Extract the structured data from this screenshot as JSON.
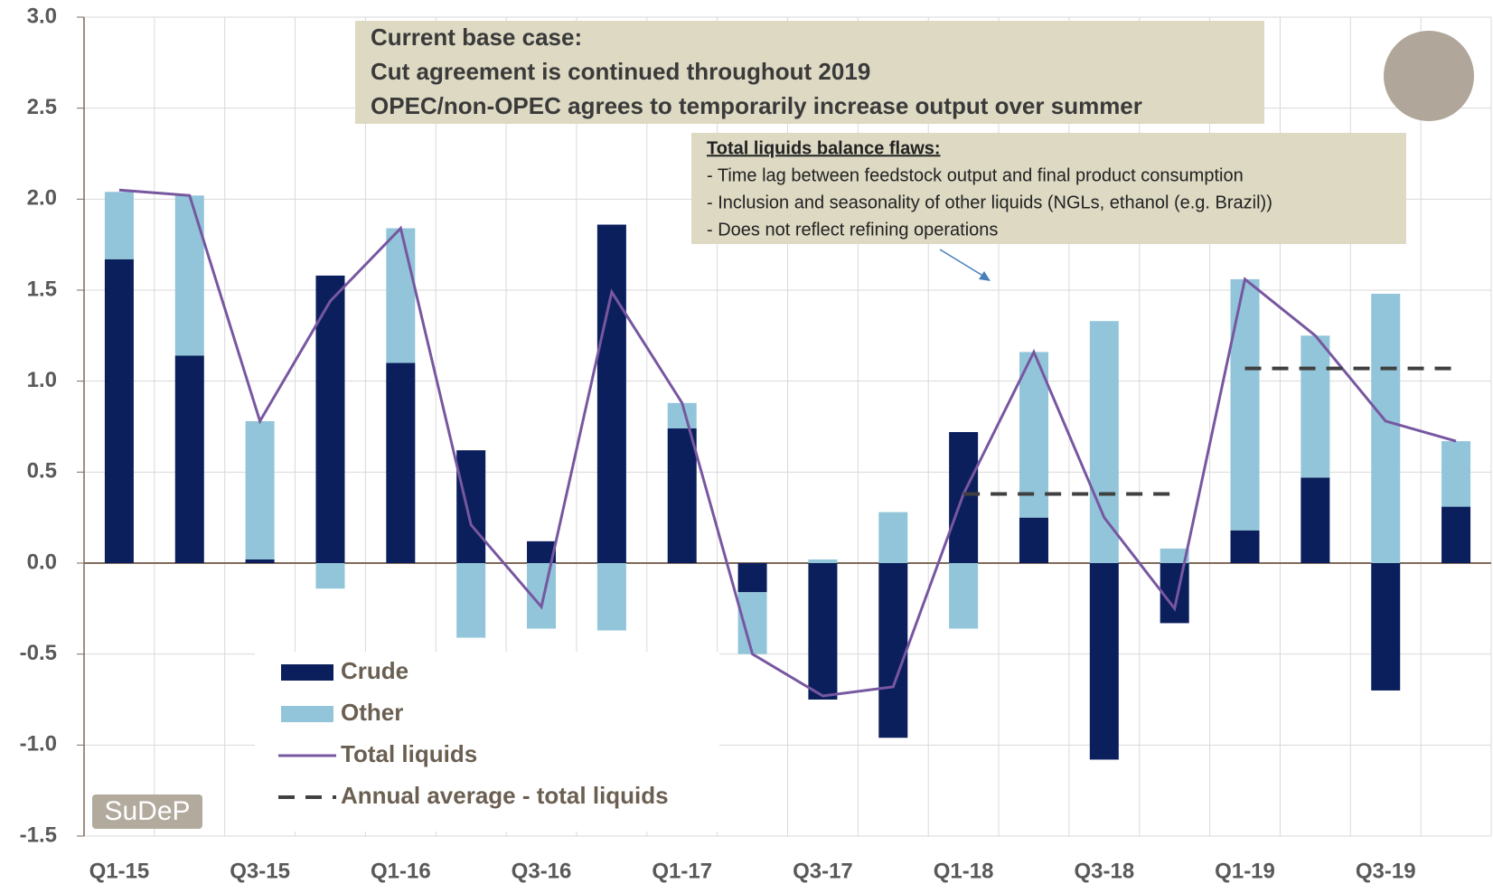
{
  "chart_data": {
    "type": "bar",
    "categories": [
      "Q1-15",
      null,
      "Q3-15",
      null,
      "Q1-16",
      null,
      "Q3-16",
      null,
      "Q1-17",
      null,
      "Q3-17",
      null,
      "Q1-18",
      null,
      "Q3-18",
      null,
      "Q1-19",
      null,
      "Q3-19",
      null
    ],
    "series": [
      {
        "name": "Crude",
        "type": "bar",
        "color": "#0b1f5c",
        "values": [
          1.67,
          1.14,
          0.02,
          1.58,
          1.1,
          0.62,
          0.12,
          1.86,
          0.74,
          -0.16,
          -0.75,
          -0.96,
          0.72,
          0.25,
          -1.08,
          -0.33,
          0.18,
          0.47,
          -0.7,
          0.31
        ]
      },
      {
        "name": "Other",
        "type": "bar",
        "color": "#92c5d9",
        "values": [
          0.37,
          0.88,
          0.76,
          -0.14,
          0.74,
          -0.41,
          -0.36,
          -0.37,
          0.14,
          -0.34,
          0.02,
          0.28,
          -0.36,
          0.91,
          1.33,
          0.08,
          1.38,
          0.78,
          1.48,
          0.36
        ]
      },
      {
        "name": "Total liquids",
        "type": "line",
        "color": "#7757a0",
        "values": [
          2.05,
          2.02,
          0.78,
          1.44,
          1.84,
          0.21,
          -0.24,
          1.49,
          0.88,
          -0.5,
          -0.73,
          -0.68,
          0.38,
          1.16,
          0.25,
          -0.25,
          1.56,
          1.25,
          0.78,
          0.67
        ]
      },
      {
        "name": "Annual average - total liquids",
        "type": "dashed",
        "color": "#404040",
        "values": [
          null,
          null,
          null,
          null,
          null,
          null,
          null,
          null,
          null,
          null,
          null,
          null,
          0.38,
          0.38,
          0.38,
          0.38,
          1.07,
          1.07,
          1.07,
          1.07
        ]
      }
    ],
    "ylim": [
      -1.5,
      3.0
    ],
    "yticks": [
      {
        "value": -1.5,
        "label": "-1.5"
      },
      {
        "value": -1,
        "label": "-1.0"
      },
      {
        "value": -0.5,
        "label": "-0.5"
      },
      {
        "value": 0,
        "label": "0.0"
      },
      0.5,
      {
        "value": 1,
        "label": "1.0"
      },
      1.5,
      {
        "value": 2,
        "label": "2.0"
      },
      2.5,
      {
        "value": 3,
        "label": "3.0"
      }
    ],
    "grid": true,
    "legend": "lower left",
    "annotations": {
      "base_case": [
        "Current base case:",
        "Cut agreement is continued throughout 2019",
        "OPEC/non-OPEC agrees to temporarily increase output over summer"
      ],
      "flaws_title": "Total liquids balance flaws:",
      "flaws": [
        "- Time lag between feedstock output and final product consumption",
        "- Inclusion and seasonality of other liquids (NGLs, ethanol (e.g. Brazil))",
        "- Does not reflect refining operations"
      ],
      "source": "SuDeP"
    }
  }
}
